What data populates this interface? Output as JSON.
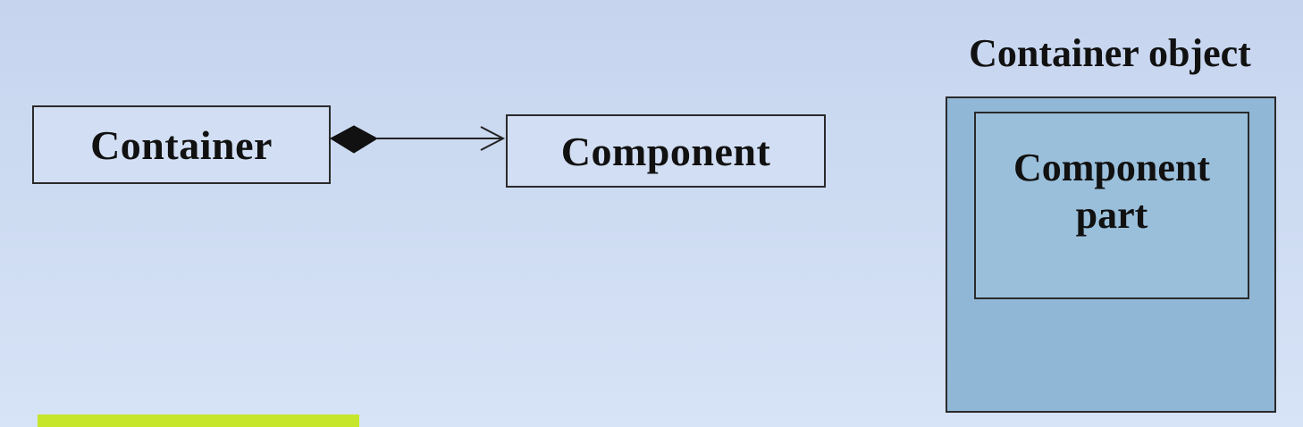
{
  "diagram": {
    "container_label": "Container",
    "component_label": "Component",
    "relationship": "composition"
  },
  "illustration": {
    "title": "Container object",
    "inner_label_line1": "Component",
    "inner_label_line2": "part"
  },
  "colors": {
    "background": "#cddbf2",
    "outer_box_fill": "#91b7d6",
    "inner_box_fill": "#9abfdb",
    "accent_strip": "#c6e62c",
    "stroke": "#2a2a2a"
  }
}
